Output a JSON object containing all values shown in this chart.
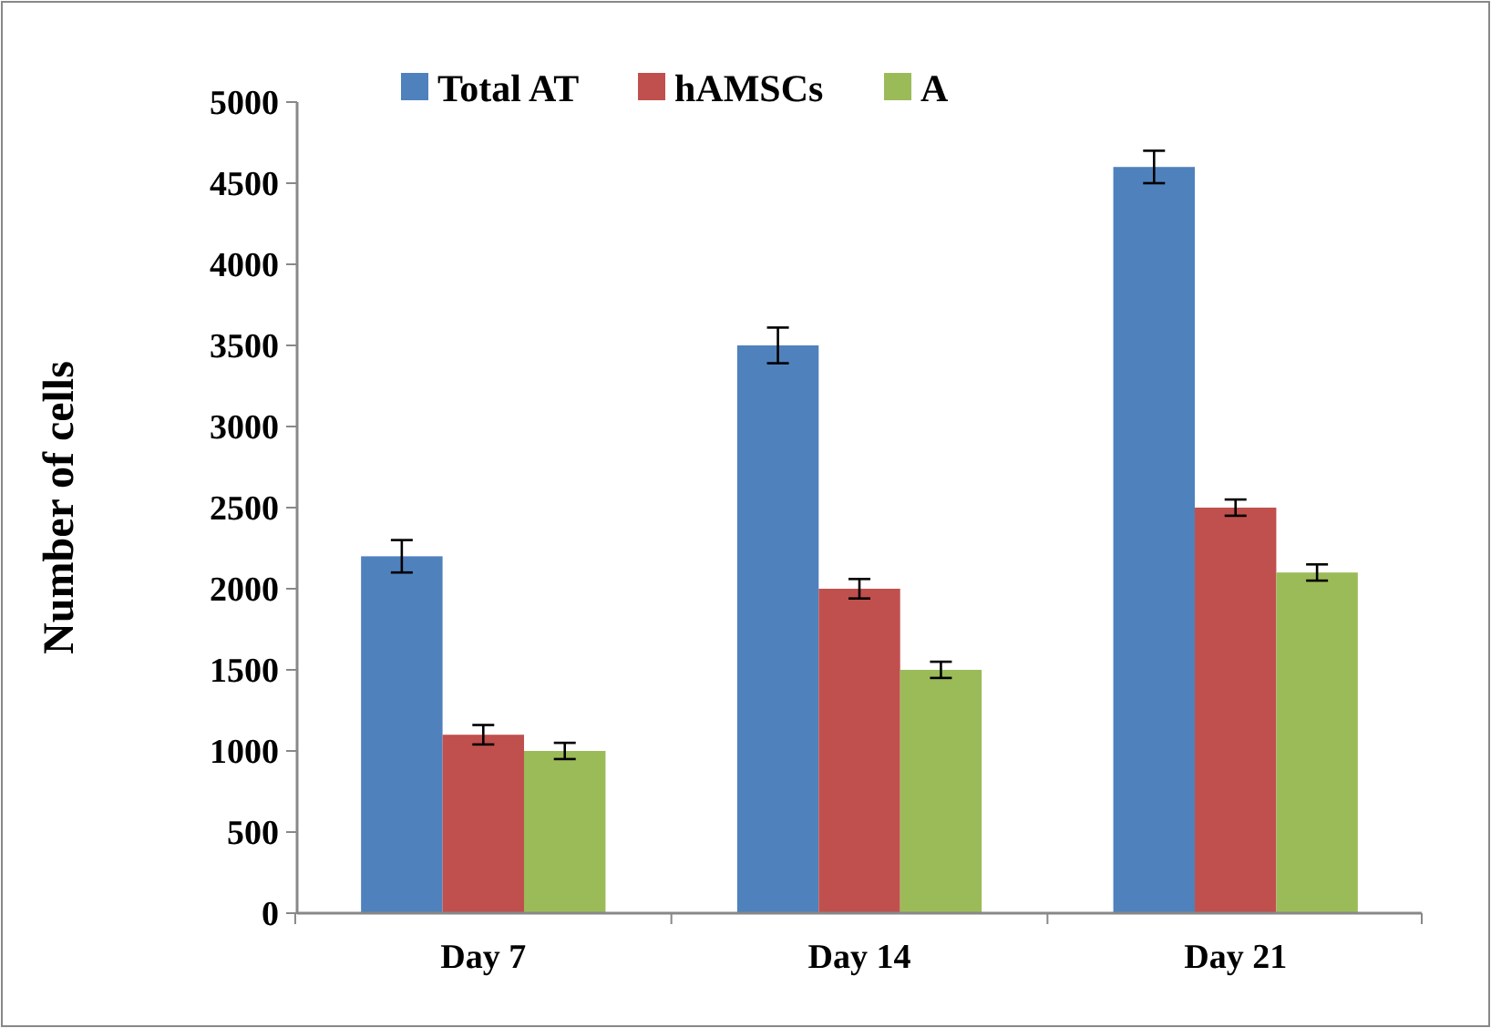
{
  "chart_data": {
    "type": "bar",
    "ylabel": "Number of cells",
    "categories": [
      "Day 7",
      "Day 14",
      "Day 21"
    ],
    "series": [
      {
        "name": "Total AT",
        "color": "#4f81bd",
        "values": [
          2200,
          3500,
          4600
        ],
        "errors": [
          100,
          110,
          100
        ]
      },
      {
        "name": "hAMSCs",
        "color": "#c0504d",
        "values": [
          1100,
          2000,
          2500
        ],
        "errors": [
          60,
          60,
          50
        ]
      },
      {
        "name": "A",
        "color": "#9bbb59",
        "values": [
          1000,
          1500,
          2100
        ],
        "errors": [
          50,
          50,
          50
        ]
      }
    ],
    "ylim": [
      0,
      5000
    ],
    "yticks": [
      0,
      500,
      1000,
      1500,
      2000,
      2500,
      3000,
      3500,
      4000,
      4500,
      5000
    ],
    "grid": false,
    "legend": "top"
  }
}
